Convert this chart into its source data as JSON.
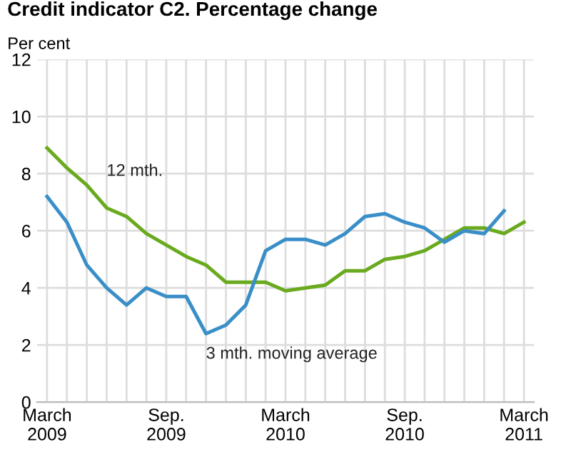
{
  "chart_data": {
    "type": "line",
    "title": "Credit indicator C2. Percentage change",
    "ylabel": "Per cent",
    "categories": [
      "March\n2009",
      null,
      null,
      null,
      null,
      null,
      "Sep.\n2009",
      null,
      null,
      null,
      null,
      null,
      "March\n2010",
      null,
      null,
      null,
      null,
      null,
      "Sep.\n2010",
      null,
      null,
      null,
      null,
      null,
      "March\n2011"
    ],
    "series": [
      {
        "name": "12 mth.",
        "color": "#6aaa1e",
        "values": [
          8.9,
          8.2,
          7.6,
          6.8,
          6.5,
          5.9,
          5.5,
          5.1,
          4.8,
          4.2,
          4.2,
          4.2,
          3.9,
          4.0,
          4.1,
          4.6,
          4.6,
          5.0,
          5.1,
          5.3,
          5.7,
          6.1,
          6.1,
          5.9,
          6.3
        ]
      },
      {
        "name": "3 mth. moving average",
        "color": "#3a8fc8",
        "values": [
          7.2,
          6.3,
          4.8,
          4.0,
          3.4,
          4.0,
          3.7,
          3.7,
          2.4,
          2.7,
          3.4,
          5.3,
          5.7,
          5.7,
          5.5,
          5.9,
          6.5,
          6.6,
          6.3,
          6.1,
          5.6,
          6.0,
          5.9,
          6.7,
          null
        ]
      }
    ],
    "ylim": [
      0,
      12
    ],
    "yticks": [
      0,
      2,
      4,
      6,
      8,
      10,
      12
    ],
    "grid": true,
    "legend": false,
    "marker": "none",
    "line_style": "solid"
  }
}
